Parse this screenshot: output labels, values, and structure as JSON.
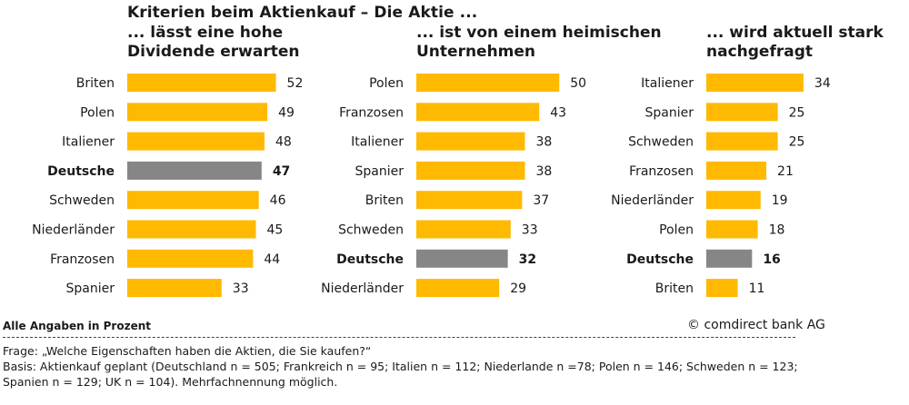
{
  "title": "Kriterien beim Aktienkauf – Die Aktie ...",
  "colors": {
    "highlight": "#868686",
    "bar": "#ffb900"
  },
  "chart_data": [
    {
      "type": "bar",
      "orientation": "horizontal",
      "subtitle": "... lässt eine hohe\nDividende erwarten",
      "categories": [
        "Briten",
        "Polen",
        "Italiener",
        "Deutsche",
        "Schweden",
        "Niederländer",
        "Franzosen",
        "Spanier"
      ],
      "values": [
        52,
        49,
        48,
        47,
        46,
        45,
        44,
        33
      ],
      "highlight": "Deutsche"
    },
    {
      "type": "bar",
      "orientation": "horizontal",
      "subtitle": "... ist von einem heimischen\nUnternehmen",
      "categories": [
        "Polen",
        "Franzosen",
        "Italiener",
        "Spanier",
        "Briten",
        "Schweden",
        "Deutsche",
        "Niederländer"
      ],
      "values": [
        50,
        43,
        38,
        38,
        37,
        33,
        32,
        29
      ],
      "highlight": "Deutsche"
    },
    {
      "type": "bar",
      "orientation": "horizontal",
      "subtitle": "... wird aktuell stark\nnachgefragt",
      "categories": [
        "Italiener",
        "Spanier",
        "Schweden",
        "Franzosen",
        "Niederländer",
        "Polen",
        "Deutsche",
        "Briten"
      ],
      "values": [
        34,
        25,
        25,
        21,
        19,
        18,
        16,
        11
      ],
      "highlight": "Deutsche"
    }
  ],
  "footer": {
    "left": "Alle Angaben in Prozent",
    "right": "© comdirect bank AG"
  },
  "notes": {
    "question": "Frage: „Welche Eigenschaften haben die Aktien, die Sie kaufen?“",
    "basis": "Basis: Aktienkauf geplant (Deutschland n = 505; Frankreich n = 95; Italien n = 112; Niederlande n =78; Polen n = 146; Schweden n = 123; Spanien n = 129; UK n = 104). Mehrfachnennung möglich."
  }
}
